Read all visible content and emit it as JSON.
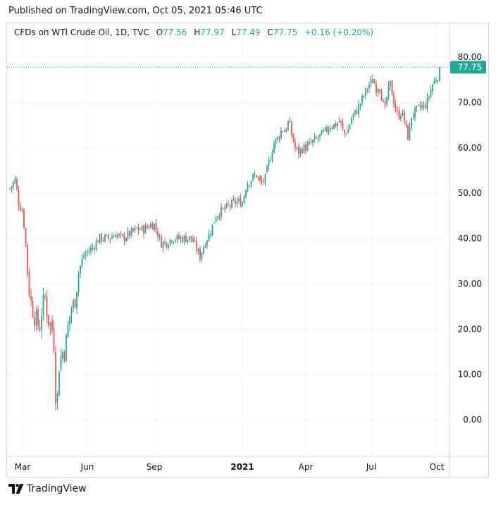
{
  "header": {
    "published": "Published on TradingView.com, Oct 05, 2021 05:46 UTC"
  },
  "legend": {
    "symbol": "CFDs on WTI Crude Oil, 1D, TVC",
    "o_label": "O",
    "o_value": "77.56",
    "h_label": "H",
    "h_value": "77.97",
    "l_label": "L",
    "l_value": "77.49",
    "c_label": "C",
    "c_value": "77.75",
    "change": "+0.16 (+0.20%)"
  },
  "footer": {
    "brand": "TradingView",
    "logo": "tradingview-logo-icon"
  },
  "colors": {
    "up": "#26a69a",
    "down": "#ef5350",
    "grid": "#f0f3fa",
    "axis_text": "#131722",
    "last_price_bg": "#26a69a"
  },
  "chart_data": {
    "type": "candlestick",
    "title": "CFDs on WTI Crude Oil, 1D, TVC",
    "ylim": [
      -8,
      86
    ],
    "y_ticks": [
      "0.00",
      "10.00",
      "20.00",
      "30.00",
      "40.00",
      "50.00",
      "60.00",
      "70.00",
      "80.00"
    ],
    "x_ticks": [
      "Mar",
      "Jun",
      "Sep",
      "2021",
      "Apr",
      "Jul",
      "Oct"
    ],
    "x_range": [
      0,
      590
    ],
    "x_tick_positions": [
      18,
      110,
      205,
      330,
      420,
      513,
      606
    ],
    "last_price": 77.75,
    "last_price_label": "77.75",
    "anchors": [
      [
        0,
        51
      ],
      [
        8,
        53
      ],
      [
        12,
        48
      ],
      [
        18,
        46
      ],
      [
        22,
        40
      ],
      [
        26,
        30
      ],
      [
        30,
        26
      ],
      [
        34,
        23
      ],
      [
        38,
        22
      ],
      [
        42,
        20
      ],
      [
        46,
        25
      ],
      [
        50,
        27
      ],
      [
        54,
        22
      ],
      [
        58,
        21
      ],
      [
        62,
        19
      ],
      [
        66,
        1
      ],
      [
        70,
        12
      ],
      [
        74,
        15
      ],
      [
        78,
        15
      ],
      [
        82,
        20
      ],
      [
        86,
        24
      ],
      [
        92,
        26
      ],
      [
        98,
        33
      ],
      [
        104,
        36
      ],
      [
        110,
        37
      ],
      [
        118,
        38
      ],
      [
        126,
        40
      ],
      [
        140,
        40
      ],
      [
        150,
        41
      ],
      [
        160,
        40
      ],
      [
        170,
        41
      ],
      [
        180,
        42
      ],
      [
        190,
        42
      ],
      [
        200,
        43
      ],
      [
        205,
        43
      ],
      [
        210,
        41
      ],
      [
        214,
        39
      ],
      [
        222,
        39
      ],
      [
        230,
        40
      ],
      [
        240,
        40
      ],
      [
        250,
        40
      ],
      [
        258,
        40
      ],
      [
        264,
        38
      ],
      [
        270,
        36
      ],
      [
        274,
        38
      ],
      [
        280,
        40
      ],
      [
        286,
        42
      ],
      [
        292,
        45
      ],
      [
        300,
        46
      ],
      [
        310,
        47
      ],
      [
        320,
        48
      ],
      [
        330,
        48
      ],
      [
        336,
        52
      ],
      [
        342,
        53
      ],
      [
        350,
        54
      ],
      [
        356,
        52
      ],
      [
        362,
        53
      ],
      [
        368,
        57
      ],
      [
        375,
        61
      ],
      [
        380,
        62
      ],
      [
        386,
        64
      ],
      [
        392,
        64
      ],
      [
        396,
        66
      ],
      [
        400,
        63
      ],
      [
        405,
        60
      ],
      [
        410,
        59
      ],
      [
        416,
        60
      ],
      [
        420,
        60
      ],
      [
        428,
        61
      ],
      [
        436,
        62
      ],
      [
        444,
        63
      ],
      [
        450,
        64
      ],
      [
        456,
        65
      ],
      [
        462,
        65
      ],
      [
        468,
        66
      ],
      [
        474,
        63
      ],
      [
        480,
        64
      ],
      [
        486,
        67
      ],
      [
        492,
        68
      ],
      [
        498,
        70
      ],
      [
        504,
        72
      ],
      [
        510,
        74
      ],
      [
        516,
        75
      ],
      [
        520,
        73
      ],
      [
        524,
        74
      ],
      [
        528,
        71
      ],
      [
        532,
        68
      ],
      [
        536,
        72
      ],
      [
        540,
        74
      ],
      [
        544,
        71
      ],
      [
        548,
        68
      ],
      [
        552,
        67
      ],
      [
        556,
        68
      ],
      [
        560,
        66
      ],
      [
        564,
        63
      ],
      [
        566,
        62
      ],
      [
        570,
        67
      ],
      [
        576,
        68
      ],
      [
        582,
        69
      ],
      [
        588,
        69
      ],
      [
        592,
        70
      ],
      [
        596,
        72
      ],
      [
        600,
        74
      ],
      [
        604,
        75
      ],
      [
        608,
        76
      ],
      [
        612,
        77.75
      ]
    ]
  }
}
